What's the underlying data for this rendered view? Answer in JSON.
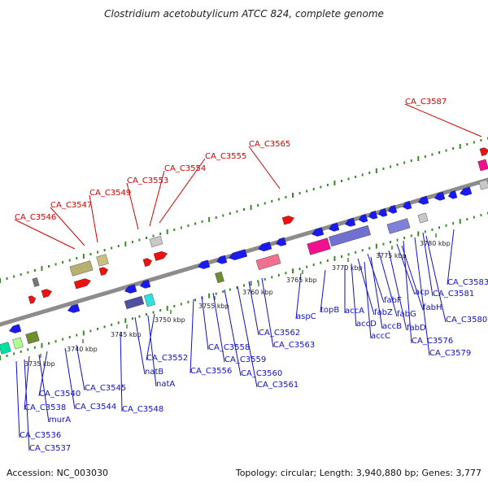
{
  "title": "Clostridium acetobutylicum ATCC 824, complete genome",
  "footer": {
    "accession": "Accession: NC_003030",
    "summary": "Topology: circular; Length: 3,940,880 bp; Genes: 3,777"
  },
  "colors": {
    "backbone": "#8c8c8c",
    "dots": "#3a8a2a",
    "top_label": "#d40000",
    "bottom_label": "#1010c8",
    "gene_blue": "#1a1af0",
    "gene_red": "#f01010"
  },
  "scale_ticks": [
    "3735 kbp",
    "3740 kbp",
    "3745 kbp",
    "3750 kbp",
    "3755 kbp",
    "3760 kbp",
    "3765 kbp",
    "3770 kbp",
    "3775 kbp",
    "3780 kbp"
  ],
  "top_labels": [
    "CA_C3546",
    "CA_C3547",
    "CA_C3549",
    "CA_C3553",
    "CA_C3554",
    "CA_C3555",
    "CA_C3565",
    "CA_C3587"
  ],
  "bottom_labels": [
    "CA_C3536",
    "CA_C3537",
    "CA_C3538",
    "murA",
    "CA_C3540",
    "CA_C3544",
    "CA_C3545",
    "CA_C3548",
    "natB",
    "natA",
    "CA_C3552",
    "CA_C3556",
    "CA_C3558",
    "CA_C3559",
    "CA_C3560",
    "CA_C3561",
    "CA_C3562",
    "CA_C3563",
    "aspC",
    "topB",
    "accA",
    "accD",
    "accC",
    "fabZ",
    "accB",
    "fabF",
    "fabG",
    "fabD",
    "fabH",
    "acp",
    "CA_C3576",
    "CA_C3579",
    "CA_C3580",
    "CA_C3581",
    "CA_C3583"
  ]
}
